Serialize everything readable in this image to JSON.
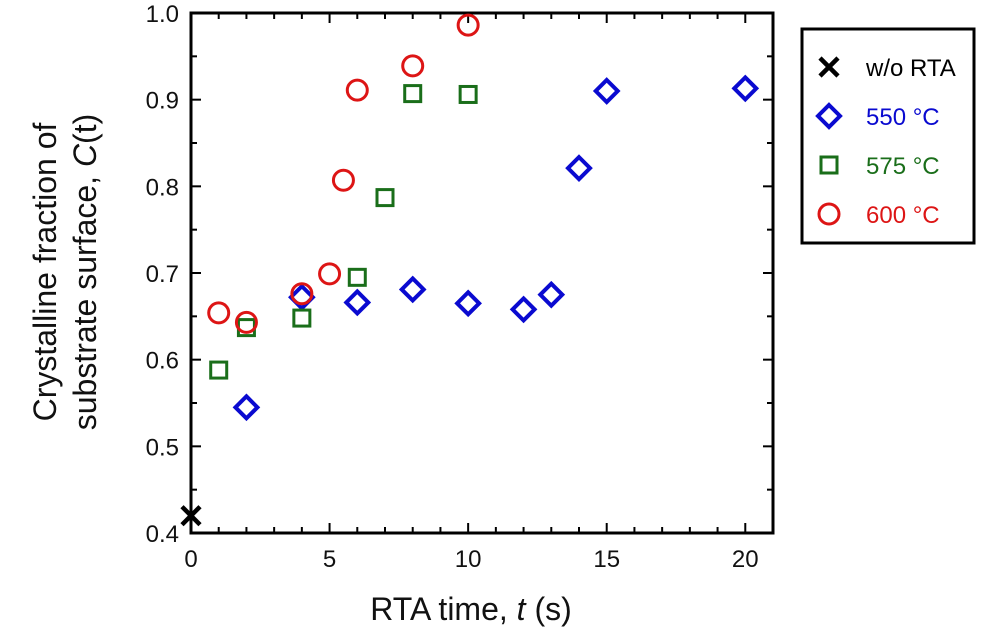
{
  "chart_data": {
    "type": "scatter",
    "title": "",
    "xlabel_prefix": "RTA time, ",
    "xlabel_var": "t",
    "xlabel_suffix": " (s)",
    "ylabel_line1": "Crystalline fraction of",
    "ylabel_line2_prefix": "substrate surface, ",
    "ylabel_line2_var": "C",
    "ylabel_line2_suffix": "(t)",
    "xlim": [
      0,
      21
    ],
    "ylim": [
      0.4,
      1.0
    ],
    "xticks": [
      0,
      5,
      10,
      15,
      20
    ],
    "yticks": [
      0.4,
      0.5,
      0.6,
      0.7,
      0.8,
      0.9,
      1.0
    ],
    "grid": false,
    "legend_position": "right",
    "series": [
      {
        "name": "w/o RTA",
        "marker": "x",
        "color": "#000000",
        "x": [
          0
        ],
        "y": [
          0.42
        ]
      },
      {
        "name": "550 °C",
        "marker": "diamond",
        "color": "#0a0ad0",
        "x": [
          2,
          4,
          6,
          8,
          10,
          12,
          13,
          14,
          15,
          20
        ],
        "y": [
          0.545,
          0.672,
          0.666,
          0.681,
          0.665,
          0.658,
          0.675,
          0.821,
          0.91,
          0.913
        ]
      },
      {
        "name": "575 °C",
        "marker": "square",
        "color": "#1a6e1a",
        "x": [
          1,
          2,
          4,
          6,
          7,
          8,
          10
        ],
        "y": [
          0.588,
          0.637,
          0.648,
          0.695,
          0.787,
          0.907,
          0.906
        ]
      },
      {
        "name": "600 °C",
        "marker": "circle",
        "color": "#dd1515",
        "x": [
          1,
          2,
          4,
          5,
          5.5,
          6,
          8,
          10
        ],
        "y": [
          0.654,
          0.643,
          0.676,
          0.699,
          0.807,
          0.911,
          0.939,
          0.986
        ]
      }
    ]
  }
}
